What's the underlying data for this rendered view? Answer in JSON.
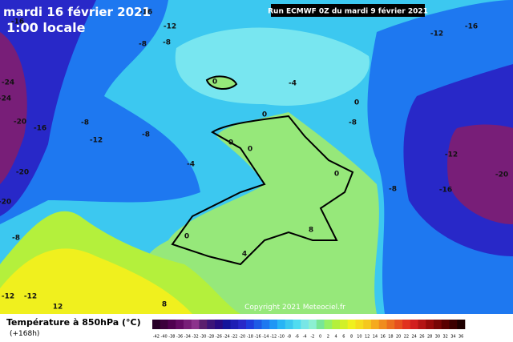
{
  "header": {
    "date": "mardi 16 février 2021",
    "time": "1:00 locale",
    "run": "Run ECMWF 0Z du mardi 9 février 2021"
  },
  "map": {
    "isotherm_labels": [
      -16,
      -12,
      -8,
      -8,
      -16,
      -24,
      -24,
      -20,
      -16,
      -8,
      -12,
      -8,
      -20,
      -20,
      -4,
      -8,
      0,
      -4,
      0,
      -8,
      0,
      0,
      0,
      0,
      -8,
      -12,
      -16,
      -20,
      0,
      4,
      8,
      -12,
      -16,
      -12,
      -12,
      12,
      8
    ],
    "copyright": "Copyright 2021 Meteociel.fr"
  },
  "legend": {
    "title": "Température à 850hPa (°C)",
    "subtitle": "(+168h)",
    "ticks": [
      -42,
      -40,
      -38,
      -36,
      -34,
      -32,
      -30,
      -28,
      -26,
      -24,
      -22,
      -20,
      -18,
      -16,
      -14,
      -12,
      -10,
      -8,
      -6,
      -4,
      -2,
      0,
      2,
      4,
      6,
      8,
      10,
      12,
      14,
      16,
      18,
      20,
      22,
      24,
      26,
      28,
      30,
      32,
      34,
      36
    ],
    "colors": [
      "#280028",
      "#3c003c",
      "#500050",
      "#640a64",
      "#781e78",
      "#8c328c",
      "#5a1e6e",
      "#3c1478",
      "#280a82",
      "#14149b",
      "#1e1eb4",
      "#2828c8",
      "#1e3cdc",
      "#1e5ae6",
      "#1e78f0",
      "#1e96f5",
      "#28b4f5",
      "#3cc8f0",
      "#50dcf0",
      "#78e6e6",
      "#8cf0d2",
      "#78e696",
      "#96f064",
      "#b4f03c",
      "#d2f028",
      "#f0f01e",
      "#f5dc1e",
      "#f5c81e",
      "#f5aa1e",
      "#f08c1e",
      "#eb6e1e",
      "#e6501e",
      "#e1321e",
      "#d21e1e",
      "#b41414",
      "#960a0a",
      "#780505",
      "#5a0000",
      "#3c0000",
      "#1e0000"
    ]
  }
}
